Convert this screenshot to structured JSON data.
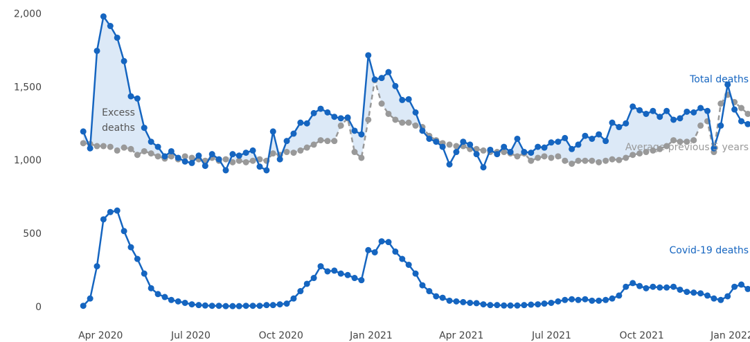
{
  "chart_data": {
    "type": "line",
    "annotation": "Excess deaths",
    "x": [
      2020.202,
      2020.221,
      2020.24,
      2020.258,
      2020.277,
      2020.296,
      2020.315,
      2020.334,
      2020.352,
      2020.371,
      2020.39,
      2020.409,
      2020.428,
      2020.446,
      2020.465,
      2020.484,
      2020.503,
      2020.522,
      2020.54,
      2020.559,
      2020.578,
      2020.597,
      2020.616,
      2020.634,
      2020.653,
      2020.672,
      2020.691,
      2020.71,
      2020.728,
      2020.747,
      2020.766,
      2020.785,
      2020.804,
      2020.822,
      2020.841,
      2020.86,
      2020.879,
      2020.898,
      2020.916,
      2020.935,
      2020.954,
      2020.973,
      2020.992,
      2021.01,
      2021.029,
      2021.048,
      2021.067,
      2021.086,
      2021.104,
      2021.123,
      2021.142,
      2021.161,
      2021.18,
      2021.198,
      2021.217,
      2021.236,
      2021.255,
      2021.274,
      2021.292,
      2021.311,
      2021.33,
      2021.349,
      2021.368,
      2021.386,
      2021.405,
      2021.424,
      2021.443,
      2021.462,
      2021.48,
      2021.499,
      2021.518,
      2021.537,
      2021.556,
      2021.574,
      2021.593,
      2021.612,
      2021.631,
      2021.65,
      2021.668,
      2021.687,
      2021.706,
      2021.725,
      2021.744,
      2021.762,
      2021.781,
      2021.8,
      2021.819,
      2021.838,
      2021.856,
      2021.875,
      2021.894,
      2021.913,
      2021.932,
      2021.95,
      2021.969,
      2021.988,
      2022.007,
      2022.026,
      2022.044
    ],
    "series": [
      {
        "name": "Total deaths",
        "color": "#1565c0",
        "line_style": "solid",
        "values": [
          1200,
          1085,
          1750,
          1985,
          1920,
          1840,
          1680,
          1440,
          1425,
          1225,
          1130,
          1095,
          1030,
          1065,
          1020,
          995,
          985,
          1035,
          965,
          1045,
          1010,
          935,
          1045,
          1035,
          1055,
          1070,
          960,
          935,
          1200,
          1010,
          1135,
          1185,
          1260,
          1255,
          1325,
          1355,
          1330,
          1300,
          1290,
          1295,
          1205,
          1180,
          1720,
          1555,
          1565,
          1605,
          1510,
          1415,
          1420,
          1330,
          1205,
          1150,
          1130,
          1095,
          975,
          1060,
          1130,
          1110,
          1045,
          955,
          1075,
          1045,
          1095,
          1060,
          1150,
          1060,
          1055,
          1095,
          1090,
          1125,
          1130,
          1155,
          1080,
          1110,
          1170,
          1150,
          1180,
          1135,
          1260,
          1230,
          1255,
          1370,
          1345,
          1320,
          1340,
          1300,
          1340,
          1280,
          1290,
          1335,
          1330,
          1360,
          1340,
          1085,
          1240,
          1520,
          1350,
          1270,
          1250
        ]
      },
      {
        "name": "Average previous 5 years",
        "color": "#999999",
        "line_style": "dashed",
        "values": [
          1120,
          1115,
          1100,
          1100,
          1095,
          1070,
          1090,
          1080,
          1040,
          1065,
          1050,
          1030,
          1015,
          1030,
          1010,
          1030,
          1020,
          1010,
          1000,
          1020,
          1000,
          1010,
          990,
          1000,
          990,
          1000,
          1010,
          1000,
          1050,
          1040,
          1060,
          1055,
          1070,
          1090,
          1110,
          1140,
          1135,
          1135,
          1240,
          1290,
          1060,
          1020,
          1280,
          1550,
          1390,
          1320,
          1280,
          1260,
          1260,
          1240,
          1230,
          1170,
          1140,
          1120,
          1110,
          1100,
          1100,
          1080,
          1080,
          1070,
          1060,
          1060,
          1060,
          1050,
          1030,
          1050,
          1000,
          1020,
          1030,
          1020,
          1030,
          1000,
          980,
          1000,
          1000,
          1000,
          990,
          1000,
          1010,
          1005,
          1020,
          1040,
          1050,
          1060,
          1070,
          1080,
          1100,
          1140,
          1130,
          1130,
          1140,
          1240,
          1270,
          1060,
          1390,
          1450,
          1400,
          1360,
          1320
        ]
      },
      {
        "name": "Covid-19 deaths",
        "color": "#1565c0",
        "line_style": "solid",
        "values": [
          10,
          60,
          280,
          600,
          650,
          660,
          520,
          410,
          330,
          230,
          130,
          90,
          70,
          50,
          40,
          30,
          20,
          15,
          12,
          10,
          10,
          8,
          8,
          8,
          10,
          10,
          10,
          15,
          15,
          20,
          25,
          60,
          110,
          160,
          200,
          280,
          245,
          250,
          230,
          220,
          200,
          185,
          390,
          375,
          450,
          445,
          380,
          330,
          290,
          230,
          150,
          110,
          75,
          65,
          45,
          40,
          35,
          30,
          28,
          20,
          15,
          15,
          12,
          12,
          12,
          15,
          18,
          20,
          25,
          30,
          40,
          50,
          55,
          50,
          55,
          45,
          45,
          50,
          60,
          80,
          140,
          165,
          145,
          130,
          140,
          135,
          135,
          140,
          120,
          105,
          100,
          95,
          80,
          60,
          50,
          75,
          140,
          155,
          125
        ]
      }
    ],
    "excess_fill": "#dce9f7",
    "xlim": [
      2020.0,
      2022.05
    ],
    "xticks": [
      {
        "value": 2020.25,
        "label": "Apr 2020"
      },
      {
        "value": 2020.5,
        "label": "Jul 2020"
      },
      {
        "value": 2020.75,
        "label": "Oct 2020"
      },
      {
        "value": 2021.0,
        "label": "Jan 2021"
      },
      {
        "value": 2021.25,
        "label": "Apr 2021"
      },
      {
        "value": 2021.5,
        "label": "Jul 2021"
      },
      {
        "value": 2021.75,
        "label": "Oct 2021"
      },
      {
        "value": 2022.0,
        "label": "Jan 2022"
      }
    ],
    "ylim": [
      -100,
      2050
    ],
    "yticks": [
      0,
      500,
      {
        "value": 1000,
        "label": "1,000"
      },
      {
        "value": 1500,
        "label": "1,500"
      },
      {
        "value": 2000,
        "label": "2,000"
      }
    ],
    "grid": false
  }
}
